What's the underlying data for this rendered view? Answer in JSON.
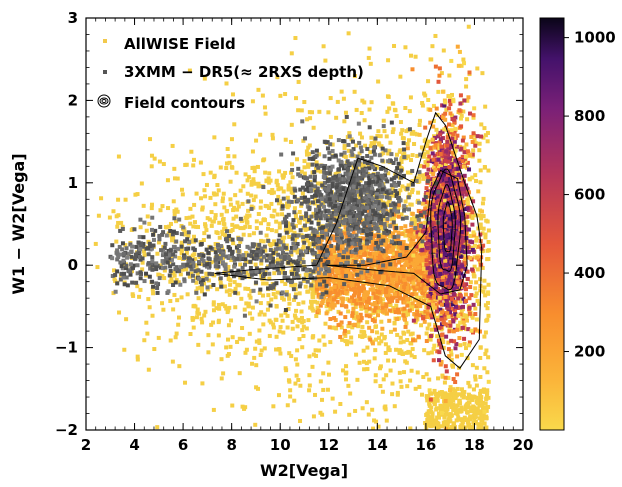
{
  "chart_data": {
    "type": "scatter",
    "xlabel": "W2[Vega]",
    "ylabel": "W1 − W2[Vega]",
    "xlim": [
      2,
      20
    ],
    "ylim": [
      -2,
      3
    ],
    "x_ticks": [
      "2",
      "4",
      "6",
      "8",
      "10",
      "12",
      "14",
      "16",
      "18",
      "20"
    ],
    "y_ticks": [
      "−2",
      "−1",
      "0",
      "1",
      "2",
      "3"
    ],
    "grid": false,
    "legend_position": "top-left",
    "legend": [
      {
        "label": "AllWISE Field",
        "marker": "square",
        "color": "#f2c94c"
      },
      {
        "label": "3XMM − DR5(≈ 2RXS depth)",
        "marker": "square",
        "color": "#555555"
      },
      {
        "label": "Field contours",
        "marker": "contour",
        "color": "#000000"
      }
    ],
    "colorbar": {
      "ticks": [
        "200",
        "400",
        "600",
        "800",
        "1000"
      ],
      "tick_values": [
        200,
        400,
        600,
        800,
        1000
      ],
      "range": [
        0,
        1050
      ],
      "colormap": "inferno_r"
    },
    "series": [
      {
        "name": "AllWISE Field",
        "kind": "density-2d",
        "color": "#f2c94c",
        "peak": {
          "x": 16.9,
          "y": 0.45,
          "count": 1000
        },
        "x_range": [
          2.2,
          18.6
        ],
        "y_range": [
          -2.0,
          2.9
        ]
      },
      {
        "name": "3XMM − DR5(≈ 2RXS depth)",
        "kind": "density-2d",
        "color": "#555555",
        "x_range": [
          2.8,
          17.5
        ],
        "y_range": [
          -0.6,
          1.4
        ]
      },
      {
        "name": "Field contours",
        "kind": "contour",
        "color": "#000000",
        "levels": 5
      }
    ]
  }
}
